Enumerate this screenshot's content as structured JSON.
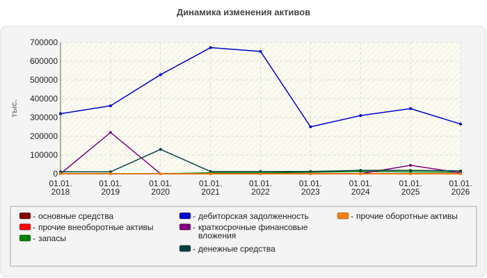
{
  "chart_data": {
    "type": "line",
    "title": "Динамика изменения активов",
    "y_label": "тыс.",
    "categories": [
      "01.01.\n2018",
      "01.01.\n2019",
      "01.01.\n2020",
      "01.01.\n2021",
      "01.01.\n2022",
      "01.01.\n2023",
      "01.01.\n2024",
      "01.01.\n2025",
      "01.01.\n2026"
    ],
    "series": [
      {
        "name": "основные средства",
        "color": "#800000",
        "values": [
          0,
          0,
          0,
          0,
          0,
          0,
          0,
          0,
          0
        ]
      },
      {
        "name": "прочие внеоборотные активы",
        "color": "#ff0000",
        "values": [
          0,
          0,
          0,
          0,
          0,
          0,
          0,
          0,
          0
        ]
      },
      {
        "name": "запасы",
        "color": "#008000",
        "values": [
          0,
          0,
          0,
          5000,
          5000,
          8000,
          12000,
          10000,
          8000
        ]
      },
      {
        "name": "дебиторская задолженность",
        "color": "#0000cc",
        "values": [
          320000,
          362000,
          528000,
          672000,
          652000,
          250000,
          310000,
          347000,
          265000
        ]
      },
      {
        "name": "краткосрочные финансовые\nвложения",
        "color": "#800080",
        "values": [
          0,
          220000,
          0,
          0,
          0,
          0,
          0,
          45000,
          5000
        ]
      },
      {
        "name": "денежные средства",
        "color": "#004040",
        "values": [
          10000,
          10000,
          130000,
          12000,
          12000,
          12000,
          18000,
          18000,
          15000
        ]
      },
      {
        "name": "прочие оборотные активы",
        "color": "#ff8000",
        "values": [
          0,
          0,
          0,
          0,
          0,
          0,
          0,
          0,
          0
        ]
      }
    ],
    "ylim": [
      0,
      700000
    ],
    "yticks": [
      0,
      100000,
      200000,
      300000,
      400000,
      500000,
      600000,
      700000
    ],
    "grid": true
  }
}
